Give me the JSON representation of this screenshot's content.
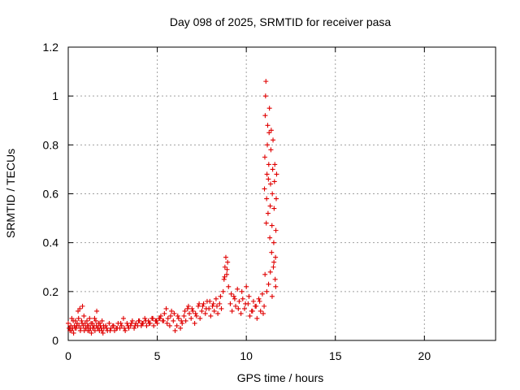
{
  "chart_data": {
    "type": "scatter",
    "title": "Day 098 of 2025, SRMTID for receiver pasa",
    "xlabel": "GPS time / hours",
    "ylabel": "SRMTID / TECUs",
    "xlim": [
      0,
      24
    ],
    "ylim": [
      0,
      1.2
    ],
    "xticks": [
      0,
      5,
      10,
      15,
      20
    ],
    "xtick_labels": [
      "0",
      "5",
      "10",
      "15",
      "20"
    ],
    "yticks": [
      0,
      0.2,
      0.4,
      0.6,
      0.8,
      1,
      1.2
    ],
    "ytick_labels": [
      "0",
      "0.2",
      "0.4",
      "0.6",
      "0.8",
      "1",
      "1.2"
    ],
    "grid": true,
    "marker": "plus",
    "series": [
      {
        "name": "SRMTID",
        "color": "#e00000",
        "x": [
          0.0,
          0.05,
          0.1,
          0.15,
          0.2,
          0.25,
          0.3,
          0.35,
          0.4,
          0.45,
          0.5,
          0.55,
          0.6,
          0.65,
          0.7,
          0.75,
          0.8,
          0.85,
          0.9,
          0.95,
          1.0,
          1.05,
          1.1,
          1.15,
          1.2,
          1.25,
          1.3,
          1.35,
          1.4,
          1.45,
          1.5,
          1.55,
          1.6,
          1.65,
          1.7,
          1.75,
          1.8,
          1.85,
          1.9,
          1.95,
          2.0,
          2.1,
          2.2,
          2.3,
          2.4,
          2.5,
          2.6,
          2.7,
          2.8,
          2.9,
          3.0,
          3.1,
          3.2,
          3.3,
          3.4,
          3.5,
          3.6,
          3.7,
          3.8,
          3.9,
          4.0,
          4.1,
          4.2,
          4.3,
          4.4,
          4.5,
          4.6,
          4.7,
          4.8,
          4.9,
          5.0,
          5.1,
          5.2,
          5.3,
          5.4,
          5.5,
          5.6,
          5.7,
          5.8,
          5.9,
          6.0,
          6.1,
          6.2,
          6.3,
          6.4,
          6.5,
          6.6,
          6.7,
          6.8,
          6.9,
          7.0,
          7.1,
          7.2,
          7.3,
          7.4,
          7.5,
          7.6,
          7.7,
          7.8,
          7.9,
          8.0,
          8.1,
          8.2,
          8.3,
          8.4,
          8.5,
          8.6,
          8.7,
          8.75,
          8.8,
          8.85,
          8.9,
          8.95,
          9.0,
          9.1,
          9.2,
          9.3,
          9.4,
          9.5,
          9.6,
          9.7,
          9.8,
          9.9,
          10.0,
          10.1,
          10.2,
          10.3,
          10.4,
          10.5,
          10.6,
          10.7,
          10.8,
          10.9,
          11.0,
          11.02,
          11.04,
          11.06,
          11.08,
          11.1,
          11.12,
          11.14,
          11.16,
          11.18,
          11.2,
          11.22,
          11.24,
          11.26,
          11.28,
          11.3,
          11.32,
          11.34,
          11.36,
          11.38,
          11.4,
          11.42,
          11.44,
          11.46,
          11.48,
          11.5,
          11.52,
          11.54,
          11.56,
          11.58,
          11.6,
          11.62,
          11.64,
          11.66,
          11.68,
          11.7,
          0.08,
          0.18,
          0.28,
          0.38,
          0.48,
          0.58,
          0.68,
          0.78,
          0.88,
          0.98,
          1.08,
          1.18,
          1.28,
          1.38,
          1.48,
          1.58,
          1.68,
          1.78,
          1.88,
          1.98,
          2.15,
          2.35,
          2.55,
          2.75,
          2.95,
          3.15,
          3.35,
          3.55,
          3.75,
          3.95,
          4.15,
          4.35,
          4.55,
          4.75,
          4.95,
          5.15,
          5.35,
          5.55,
          5.75,
          5.95,
          6.15,
          6.35,
          6.55,
          6.75,
          6.95,
          7.15,
          7.35,
          7.55,
          7.75,
          7.95,
          8.15,
          8.35,
          8.55,
          8.78,
          8.92,
          9.15,
          9.35,
          9.55,
          9.75,
          9.95,
          10.15,
          10.35,
          10.55,
          10.75,
          10.95,
          11.05,
          11.15,
          11.25,
          11.35,
          11.45,
          11.55,
          11.65
        ],
        "y": [
          0.07,
          0.05,
          0.04,
          0.06,
          0.09,
          0.05,
          0.03,
          0.06,
          0.08,
          0.05,
          0.07,
          0.12,
          0.06,
          0.13,
          0.05,
          0.08,
          0.14,
          0.06,
          0.04,
          0.07,
          0.05,
          0.08,
          0.04,
          0.06,
          0.09,
          0.05,
          0.03,
          0.07,
          0.05,
          0.06,
          0.04,
          0.08,
          0.12,
          0.05,
          0.07,
          0.04,
          0.06,
          0.05,
          0.08,
          0.03,
          0.05,
          0.06,
          0.04,
          0.07,
          0.05,
          0.06,
          0.04,
          0.05,
          0.07,
          0.05,
          0.06,
          0.09,
          0.04,
          0.07,
          0.05,
          0.06,
          0.08,
          0.05,
          0.07,
          0.06,
          0.08,
          0.06,
          0.07,
          0.09,
          0.06,
          0.08,
          0.07,
          0.09,
          0.06,
          0.08,
          0.07,
          0.09,
          0.1,
          0.08,
          0.11,
          0.13,
          0.09,
          0.06,
          0.12,
          0.08,
          0.04,
          0.06,
          0.09,
          0.05,
          0.07,
          0.1,
          0.08,
          0.13,
          0.11,
          0.09,
          0.12,
          0.07,
          0.1,
          0.14,
          0.09,
          0.12,
          0.15,
          0.11,
          0.16,
          0.13,
          0.1,
          0.14,
          0.12,
          0.17,
          0.11,
          0.15,
          0.13,
          0.2,
          0.25,
          0.3,
          0.34,
          0.27,
          0.32,
          0.22,
          0.15,
          0.12,
          0.18,
          0.14,
          0.21,
          0.16,
          0.11,
          0.17,
          0.13,
          0.22,
          0.15,
          0.1,
          0.12,
          0.16,
          0.14,
          0.09,
          0.17,
          0.12,
          0.19,
          0.14,
          0.62,
          0.75,
          0.92,
          1.0,
          1.06,
          0.48,
          0.58,
          0.68,
          0.8,
          0.88,
          0.52,
          0.66,
          0.72,
          0.85,
          0.95,
          0.42,
          0.55,
          0.64,
          0.78,
          0.86,
          0.36,
          0.47,
          0.6,
          0.7,
          0.82,
          0.3,
          0.4,
          0.54,
          0.65,
          0.72,
          0.25,
          0.34,
          0.45,
          0.58,
          0.68,
          0.05,
          0.04,
          0.08,
          0.05,
          0.06,
          0.09,
          0.04,
          0.07,
          0.1,
          0.05,
          0.06,
          0.04,
          0.07,
          0.05,
          0.09,
          0.06,
          0.05,
          0.07,
          0.04,
          0.06,
          0.05,
          0.04,
          0.06,
          0.05,
          0.07,
          0.05,
          0.06,
          0.07,
          0.06,
          0.08,
          0.07,
          0.08,
          0.07,
          0.09,
          0.08,
          0.09,
          0.08,
          0.07,
          0.1,
          0.11,
          0.1,
          0.08,
          0.12,
          0.14,
          0.13,
          0.11,
          0.15,
          0.14,
          0.13,
          0.16,
          0.15,
          0.14,
          0.18,
          0.26,
          0.29,
          0.19,
          0.17,
          0.13,
          0.2,
          0.15,
          0.18,
          0.12,
          0.14,
          0.16,
          0.11,
          0.27,
          0.2,
          0.23,
          0.28,
          0.18,
          0.32,
          0.22
        ]
      }
    ]
  }
}
